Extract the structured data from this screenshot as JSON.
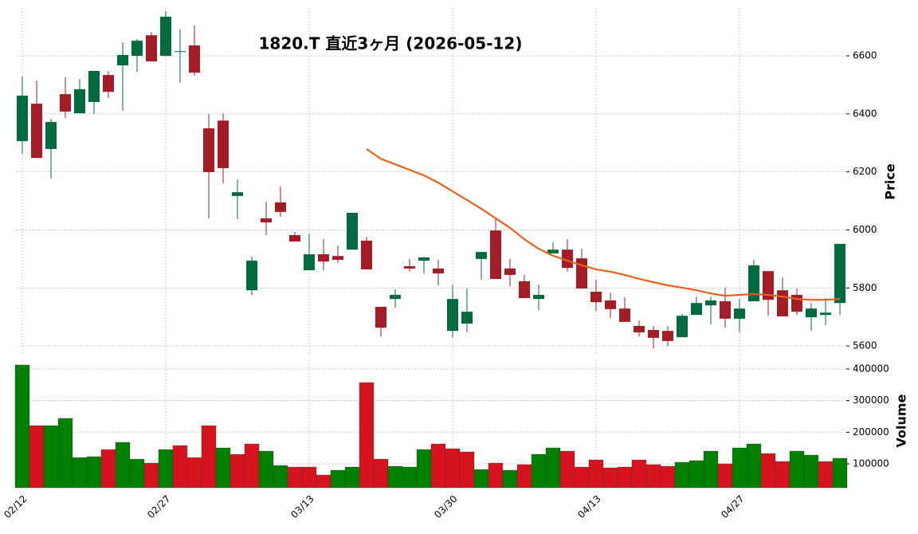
{
  "chart_data": {
    "type": "candlestick",
    "title": "1820.T  直近3ヶ月  (2026-05-12)",
    "categories": [
      "02/12",
      null,
      null,
      null,
      null,
      null,
      null,
      null,
      null,
      null,
      "02/27",
      null,
      null,
      null,
      null,
      null,
      null,
      null,
      null,
      null,
      "03/13",
      null,
      null,
      null,
      null,
      null,
      null,
      null,
      null,
      null,
      "03/30",
      null,
      null,
      null,
      null,
      null,
      null,
      null,
      null,
      null,
      "04/13",
      null,
      null,
      null,
      null,
      null,
      null,
      null,
      null,
      null,
      "04/27",
      null,
      null,
      null,
      null,
      null,
      null,
      null
    ],
    "open": [
      6306,
      6435,
      6279,
      6468,
      6402,
      6441,
      6534,
      6567,
      6600,
      6671,
      6600,
      6616,
      6636,
      6350,
      6377,
      6117,
      5792,
      6040,
      6095,
      5982,
      5861,
      5916,
      5910,
      5932,
      5963,
      5735,
      5762,
      5875,
      5894,
      5867,
      5652,
      5677,
      5900,
      5998,
      5867,
      5823,
      5762,
      5919,
      5932,
      5902,
      5787,
      5757,
      5729,
      5669,
      5655,
      5652,
      5630,
      5707,
      5740,
      5754,
      5694,
      5754,
      5858,
      5792,
      5776,
      5699,
      5707,
      5748
    ],
    "high": [
      6529,
      6515,
      6383,
      6526,
      6520,
      6548,
      6548,
      6647,
      6658,
      6682,
      6754,
      6691,
      6704,
      6399,
      6402,
      6174,
      5908,
      6097,
      6150,
      5993,
      5987,
      5968,
      5946,
      6059,
      5976,
      5735,
      5795,
      5900,
      5908,
      5897,
      5812,
      5798,
      5924,
      6037,
      5900,
      5845,
      5812,
      5957,
      5968,
      5935,
      5828,
      5784,
      5768,
      5688,
      5669,
      5669,
      5710,
      5770,
      5770,
      5801,
      5762,
      5897,
      5858,
      5836,
      5798,
      5748,
      5765,
      5952
    ],
    "low": [
      6262,
      6248,
      6177,
      6386,
      6402,
      6399,
      6454,
      6410,
      6545,
      6581,
      6600,
      6507,
      6531,
      6040,
      6160,
      6037,
      5776,
      5982,
      6045,
      5960,
      5861,
      5861,
      5886,
      5932,
      5864,
      5633,
      5732,
      5856,
      5850,
      5809,
      5630,
      5647,
      5828,
      5831,
      5806,
      5765,
      5724,
      5919,
      5856,
      5798,
      5721,
      5696,
      5683,
      5633,
      5592,
      5600,
      5630,
      5707,
      5674,
      5663,
      5647,
      5754,
      5704,
      5702,
      5707,
      5652,
      5672,
      5707
    ],
    "close": [
      6463,
      6248,
      6372,
      6408,
      6485,
      6548,
      6476,
      6603,
      6652,
      6581,
      6735,
      6616,
      6542,
      6199,
      6213,
      6130,
      5894,
      6026,
      6062,
      5960,
      5916,
      5891,
      5897,
      6059,
      5864,
      5663,
      5776,
      5867,
      5905,
      5850,
      5762,
      5718,
      5924,
      5831,
      5845,
      5765,
      5776,
      5932,
      5869,
      5798,
      5751,
      5727,
      5683,
      5647,
      5628,
      5617,
      5704,
      5748,
      5757,
      5694,
      5729,
      5878,
      5759,
      5702,
      5718,
      5729,
      5715,
      5952
    ],
    "up_color": "#006b3f",
    "down_color": "#a31c26",
    "ylabel": "Price",
    "ylim": [
      5570,
      6765
    ],
    "yticks": [
      5600,
      5800,
      6000,
      6200,
      6400,
      6600
    ],
    "grid": true,
    "overlay": {
      "type": "line",
      "color": "#e8601c",
      "values": [
        null,
        null,
        null,
        null,
        null,
        null,
        null,
        null,
        null,
        null,
        null,
        null,
        null,
        null,
        null,
        null,
        null,
        null,
        null,
        null,
        null,
        null,
        null,
        null,
        6279,
        6245,
        6226,
        6207,
        6188,
        6163,
        6133,
        6103,
        6073,
        6040,
        6007,
        5968,
        5935,
        5911,
        5894,
        5878,
        5864,
        5856,
        5845,
        5831,
        5820,
        5809,
        5801,
        5792,
        5781,
        5773,
        5776,
        5779,
        5776,
        5770,
        5762,
        5759,
        5759,
        5762
      ]
    },
    "volume": {
      "type": "bar",
      "ylabel": "Volume",
      "up_color": "#008000",
      "down_color": "#d7141e",
      "values": [
        412700,
        221000,
        221000,
        243800,
        120000,
        122800,
        145400,
        168100,
        115100,
        102600,
        145400,
        158000,
        120000,
        221000,
        150500,
        130300,
        163100,
        140400,
        95000,
        90000,
        90000,
        64800,
        79900,
        90000,
        357200,
        115100,
        92500,
        90000,
        145400,
        163100,
        148000,
        137900,
        82400,
        102600,
        79900,
        97600,
        130300,
        150500,
        140400,
        90000,
        112600,
        87500,
        90000,
        112600,
        97600,
        92500,
        105100,
        110200,
        140400,
        100100,
        150500,
        163100,
        132800,
        107600,
        140400,
        127800,
        107600,
        117700
      ],
      "ylim": [
        24400,
        427700
      ],
      "yticks": [
        100000,
        200000,
        300000,
        400000
      ]
    }
  }
}
